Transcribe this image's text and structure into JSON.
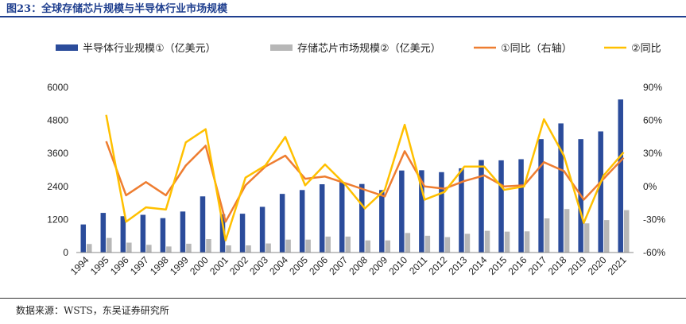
{
  "figure_title": "图23：全球存储芯片规模与半导体行业市场规模",
  "source": "数据来源：WSTS，东吴证券研究所",
  "colors": {
    "semi_bar": "#2b4c9b",
    "memory_bar": "#b7b7b7",
    "semi_yoy": "#ee7d31",
    "memory_yoy": "#ffc000",
    "title": "#1f3f8f"
  },
  "chart_data": {
    "type": "bar",
    "categories": [
      "1994",
      "1995",
      "1996",
      "1997",
      "1998",
      "1999",
      "2000",
      "2001",
      "2002",
      "2003",
      "2004",
      "2005",
      "2006",
      "2007",
      "2008",
      "2009",
      "2010",
      "2011",
      "2012",
      "2013",
      "2014",
      "2015",
      "2016",
      "2017",
      "2018",
      "2019",
      "2020",
      "2021"
    ],
    "series": [
      {
        "name": "半导体行业规模①（亿美元）",
        "type": "bar",
        "axis": "left",
        "values": [
          1020,
          1440,
          1320,
          1370,
          1250,
          1490,
          2040,
          1390,
          1410,
          1660,
          2130,
          2270,
          2480,
          2560,
          2490,
          2270,
          2980,
          2990,
          2920,
          3060,
          3360,
          3350,
          3390,
          4120,
          4690,
          4120,
          4400,
          5560
        ]
      },
      {
        "name": "存储芯片市场规模②（亿美元）",
        "type": "bar",
        "axis": "left",
        "values": [
          310,
          530,
          360,
          280,
          220,
          320,
          490,
          260,
          260,
          330,
          470,
          470,
          580,
          580,
          440,
          440,
          710,
          610,
          560,
          680,
          790,
          760,
          770,
          1240,
          1580,
          1060,
          1180,
          1540
        ]
      },
      {
        "name": "①同比（右轴）",
        "type": "line",
        "axis": "right",
        "values": [
          null,
          41,
          -8,
          4,
          -8,
          19,
          37,
          -32,
          1,
          18,
          28,
          7,
          9,
          3,
          -3,
          -9,
          32,
          0,
          -2,
          5,
          10,
          0,
          1,
          22,
          14,
          -12,
          7,
          26
        ]
      },
      {
        "name": "②同比",
        "type": "line",
        "axis": "right",
        "values": [
          null,
          65,
          -32,
          -19,
          -21,
          40,
          52,
          -49,
          8,
          19,
          45,
          1,
          20,
          2,
          -20,
          -3,
          56,
          -12,
          -5,
          18,
          18,
          -3,
          0,
          61,
          28,
          -33,
          10,
          31
        ]
      }
    ],
    "left_axis": {
      "ylim": [
        0,
        6000
      ],
      "ticks": [
        "0",
        "1200",
        "2400",
        "3600",
        "4800",
        "6000"
      ]
    },
    "right_axis": {
      "ylim": [
        -60,
        90
      ],
      "ticks": [
        "-60%",
        "-30%",
        "0%",
        "30%",
        "60%",
        "90%"
      ]
    },
    "legend_position": "top",
    "grid": false
  }
}
